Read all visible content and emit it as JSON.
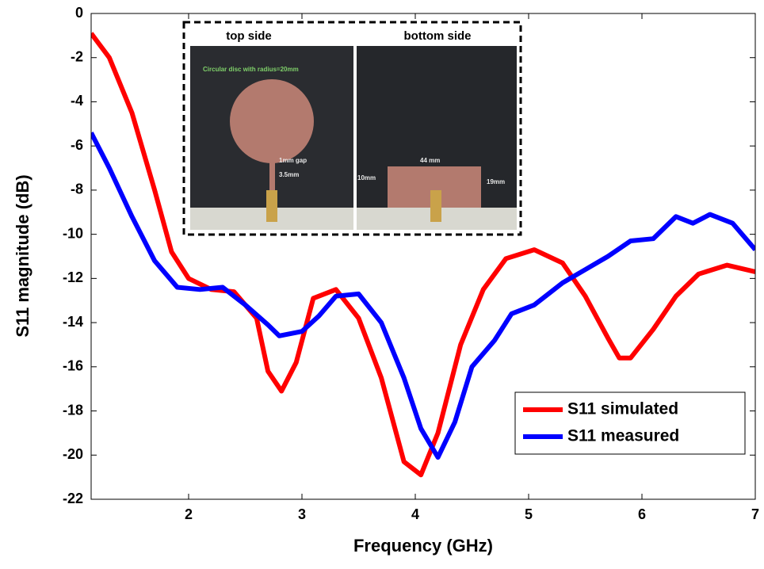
{
  "chart_data": {
    "type": "line",
    "xlabel": "Frequency (GHz)",
    "ylabel": "S11 magnitude (dB)",
    "xlim": [
      1.14,
      7
    ],
    "xticks": [
      2,
      3,
      4,
      5,
      6,
      7
    ],
    "ylim": [
      -22,
      0
    ],
    "yticks": [
      0,
      -2,
      -4,
      -6,
      -8,
      -10,
      -12,
      -14,
      -16,
      -18,
      -20,
      -22
    ],
    "legend": "lower right",
    "annotations": [
      "top side",
      "bottom side",
      "Circular disc with radius=20mm",
      "1mm gap",
      "3.5mm",
      "44 mm",
      "10mm",
      "19mm"
    ],
    "series": [
      {
        "name": "S11 simulated",
        "color": "#ff0000",
        "x": [
          1.14,
          1.3,
          1.5,
          1.7,
          1.85,
          2.0,
          2.2,
          2.4,
          2.6,
          2.7,
          2.82,
          2.95,
          3.1,
          3.3,
          3.5,
          3.7,
          3.9,
          4.05,
          4.2,
          4.4,
          4.6,
          4.8,
          5.05,
          5.3,
          5.5,
          5.7,
          5.8,
          5.9,
          6.1,
          6.3,
          6.5,
          6.75,
          7.0
        ],
        "values": [
          -0.9,
          -2,
          -4.5,
          -8,
          -10.8,
          -12,
          -12.5,
          -12.6,
          -13.8,
          -16.2,
          -17.1,
          -15.8,
          -12.9,
          -12.5,
          -13.8,
          -16.5,
          -20.3,
          -20.9,
          -19,
          -15,
          -12.5,
          -11.1,
          -10.7,
          -11.3,
          -12.8,
          -14.7,
          -15.6,
          -15.6,
          -14.3,
          -12.8,
          -11.8,
          -11.4,
          -11.7
        ]
      },
      {
        "name": "S11 measured",
        "color": "#0000ff",
        "x": [
          1.14,
          1.3,
          1.5,
          1.7,
          1.9,
          2.1,
          2.3,
          2.5,
          2.7,
          2.8,
          3.0,
          3.15,
          3.3,
          3.5,
          3.7,
          3.9,
          4.05,
          4.2,
          4.35,
          4.5,
          4.7,
          4.85,
          5.05,
          5.3,
          5.5,
          5.7,
          5.9,
          6.1,
          6.3,
          6.45,
          6.6,
          6.8,
          7.0
        ],
        "values": [
          -5.4,
          -7,
          -9.2,
          -11.2,
          -12.4,
          -12.5,
          -12.4,
          -13.2,
          -14.1,
          -14.6,
          -14.4,
          -13.7,
          -12.8,
          -12.7,
          -14,
          -16.5,
          -18.8,
          -20.1,
          -18.5,
          -16,
          -14.8,
          -13.6,
          -13.2,
          -12.2,
          -11.6,
          -11,
          -10.3,
          -10.2,
          -9.2,
          -9.5,
          -9.1,
          -9.5,
          -10.7
        ]
      }
    ]
  }
}
